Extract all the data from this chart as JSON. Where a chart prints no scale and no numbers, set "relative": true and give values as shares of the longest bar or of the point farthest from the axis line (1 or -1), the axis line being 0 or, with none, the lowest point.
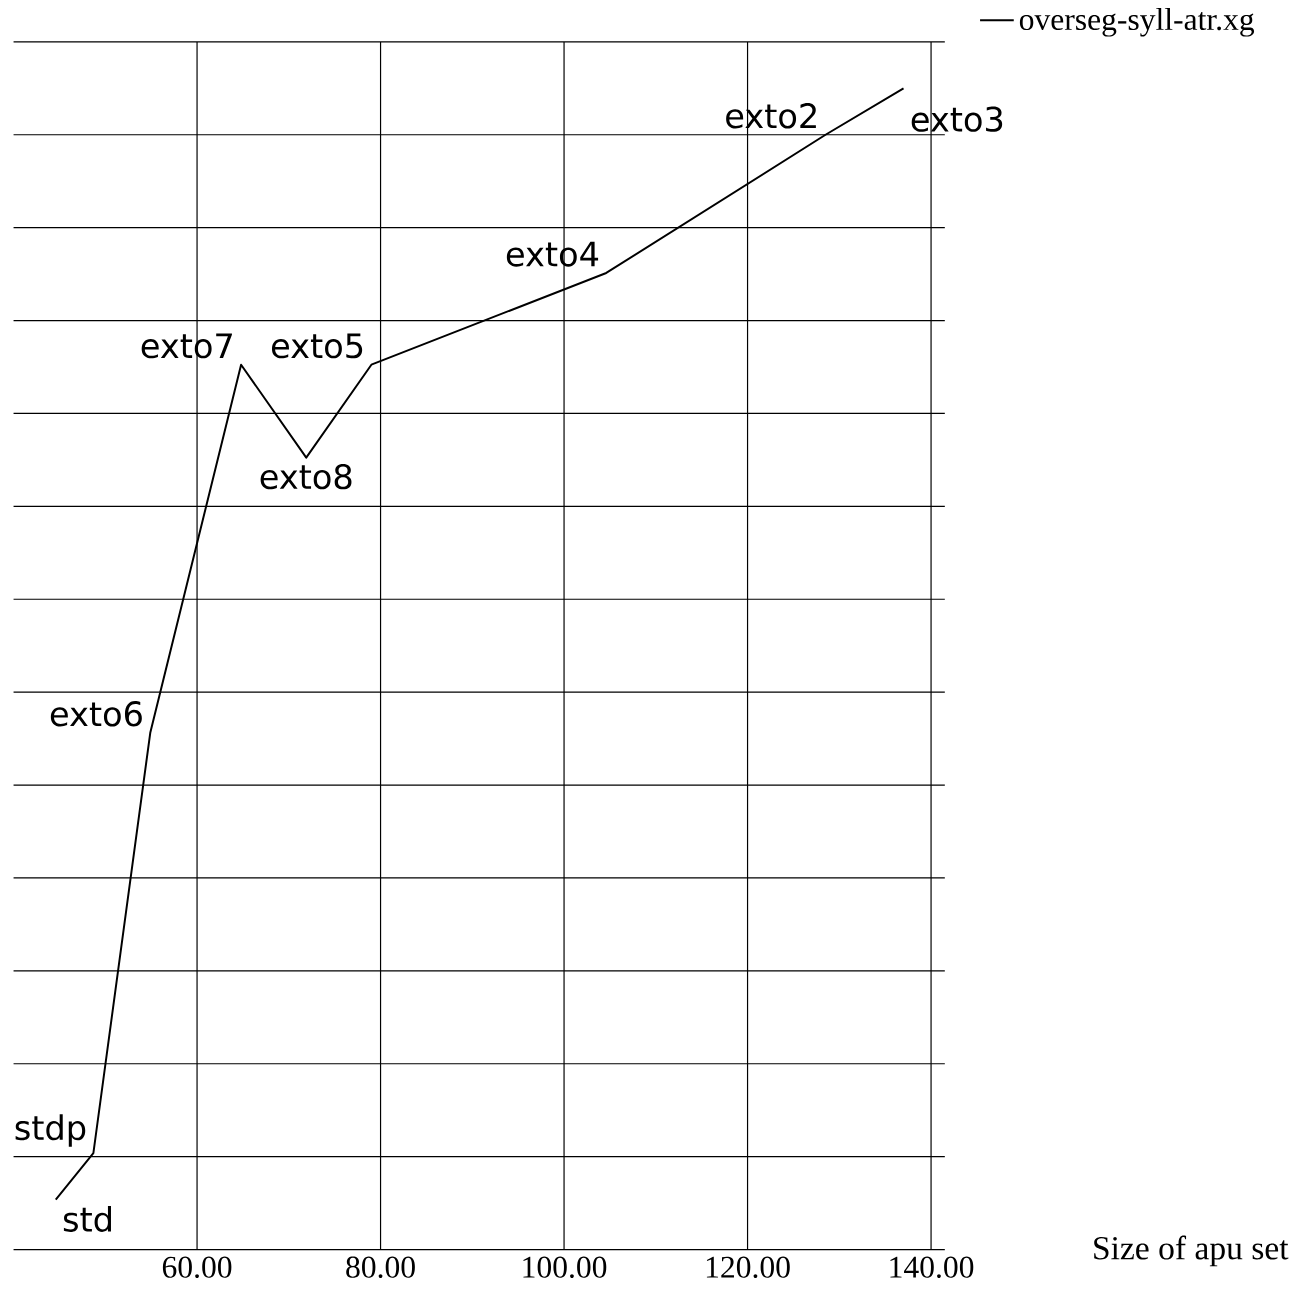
{
  "chart_data": {
    "type": "line",
    "relative": true,
    "x": [
      44.6,
      48.7,
      54.9,
      64.8,
      71.9,
      79.0,
      104.6,
      128.5,
      137.0
    ],
    "series": [
      {
        "name": "overseg-syll-atr.xg",
        "color": "#000000",
        "values": [
          0.043,
          0.083,
          0.445,
          0.762,
          0.682,
          0.762,
          0.841,
          0.96,
          1.0
        ]
      }
    ],
    "xlim": [
      40,
      141.5
    ],
    "xticks": [
      {
        "value": 60,
        "label": "60.00"
      },
      {
        "value": 80,
        "label": "80.00"
      },
      {
        "value": 100,
        "label": "100.00"
      },
      {
        "value": 120,
        "label": "120.00"
      },
      {
        "value": 140,
        "label": "140.00"
      }
    ],
    "xlabel": "Size of apu set",
    "grid": true,
    "legend": "top right",
    "marker": "none",
    "line_style": "solid",
    "annotations": [
      {
        "text": "std",
        "x": 44.6,
        "y": 0.043
      },
      {
        "text": "stdp",
        "x": 48.7,
        "y": 0.083
      },
      {
        "text": "exto6",
        "x": 54.9,
        "y": 0.445
      },
      {
        "text": "exto7",
        "x": 64.8,
        "y": 0.762
      },
      {
        "text": "exto8",
        "x": 71.9,
        "y": 0.682
      },
      {
        "text": "exto5",
        "x": 79.0,
        "y": 0.762
      },
      {
        "text": "exto4",
        "x": 104.6,
        "y": 0.841
      },
      {
        "text": "exto2",
        "x": 128.5,
        "y": 0.96
      },
      {
        "text": "exto3",
        "x": 137.0,
        "y": 1.0
      }
    ]
  }
}
